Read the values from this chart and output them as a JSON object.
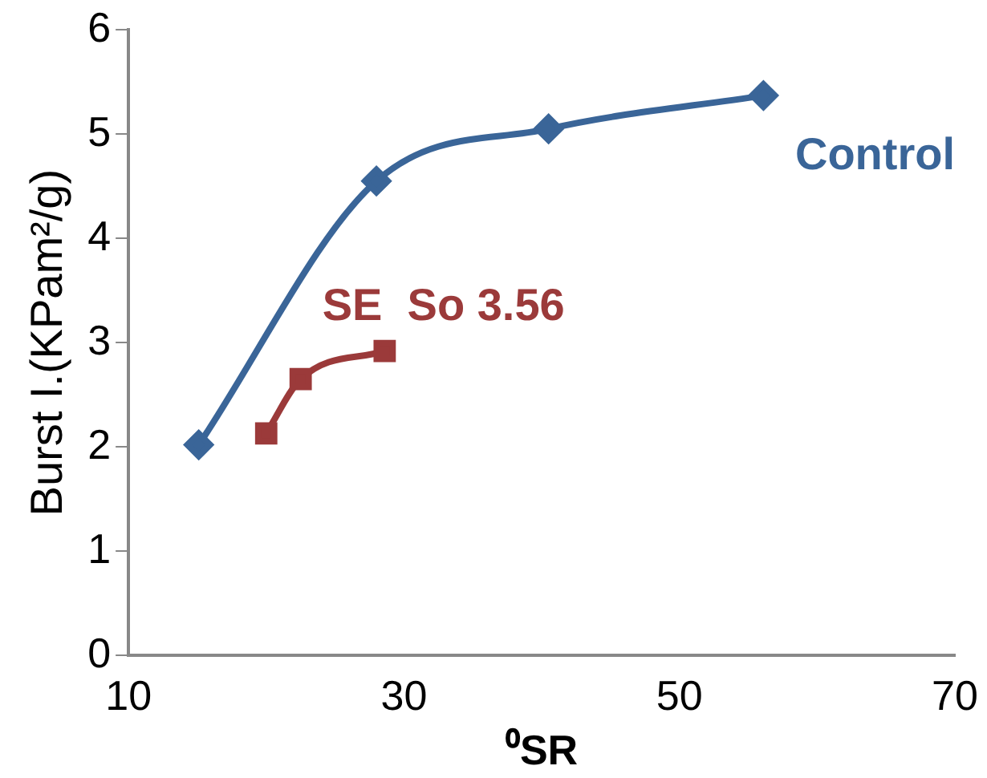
{
  "chart_data": {
    "type": "line",
    "xlabel": "⁰SR",
    "ylabel": "Burst I.(KPam²/g)",
    "xlim": [
      10,
      70
    ],
    "xticks": [
      10,
      30,
      50,
      70
    ],
    "ylim": [
      0,
      6
    ],
    "yticks": [
      0,
      1,
      2,
      3,
      4,
      5,
      6
    ],
    "grid": false,
    "legend": false,
    "series": [
      {
        "name": "Control",
        "color": "#3a6598",
        "marker": "diamond",
        "x": [
          15.1,
          28.0,
          40.5,
          56.1
        ],
        "values": [
          2.02,
          4.55,
          5.05,
          5.37
        ]
      },
      {
        "name": "SE  So 3.56",
        "color": "#9b3a3a",
        "marker": "square",
        "x": [
          20.0,
          22.5,
          28.6
        ],
        "values": [
          2.13,
          2.65,
          2.92
        ]
      }
    ]
  }
}
